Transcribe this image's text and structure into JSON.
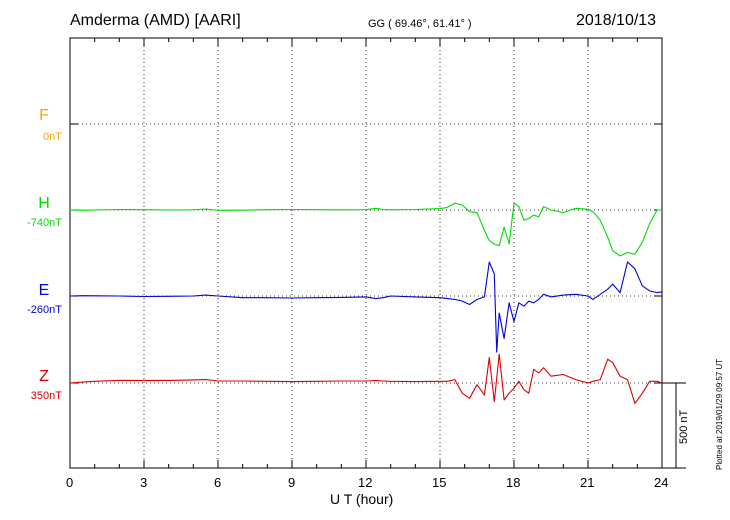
{
  "header": {
    "station": "Amderma (AMD)  [AARI]",
    "coords": "GG ( 69.46°,  61.41° )",
    "date": "2018/10/13"
  },
  "side_note": "Plotted at 2019/01/29 09:57 UT",
  "scale_label": "500 nT",
  "chart_data": {
    "type": "line",
    "xlabel": "U T (hour)",
    "xlim": [
      0,
      24
    ],
    "xticks": [
      "0",
      "3",
      "6",
      "9",
      "12",
      "15",
      "18",
      "21",
      "24"
    ],
    "grid": true,
    "scale_bar_nT": 500,
    "channels": [
      {
        "name": "F",
        "baseline": "0nT",
        "color": "#FFA500"
      },
      {
        "name": "H",
        "baseline": "-740nT",
        "color": "#00DD00"
      },
      {
        "name": "E",
        "baseline": "-260nT",
        "color": "#0000DD"
      },
      {
        "name": "Z",
        "baseline": "350nT",
        "color": "#DD0000"
      }
    ],
    "series": [
      {
        "name": "H",
        "x": [
          0,
          0.5,
          1,
          2,
          3,
          4,
          5,
          5.5,
          6,
          7,
          8,
          9,
          10,
          11,
          12,
          12.4,
          12.7,
          13,
          14,
          15,
          15.3,
          15.6,
          15.9,
          16.2,
          16.5,
          16.8,
          17,
          17.2,
          17.4,
          17.6,
          17.8,
          18,
          18.2,
          18.4,
          18.6,
          18.8,
          19,
          19.2,
          19.5,
          20,
          20.5,
          21,
          21.2,
          21.5,
          21.8,
          22,
          22.3,
          22.6,
          22.9,
          23.2,
          23.5,
          23.8,
          24
        ],
        "values": [
          0,
          -2,
          0,
          3,
          2,
          0,
          1,
          6,
          -2,
          -1,
          2,
          3,
          2,
          1,
          2,
          10,
          3,
          1,
          3,
          8,
          15,
          40,
          30,
          -10,
          -15,
          -120,
          -180,
          -200,
          -210,
          -100,
          -200,
          40,
          20,
          -60,
          -50,
          -30,
          -40,
          20,
          0,
          -15,
          10,
          5,
          -10,
          -60,
          -160,
          -240,
          -270,
          -250,
          -260,
          -190,
          -80,
          0,
          0
        ]
      },
      {
        "name": "E",
        "x": [
          0,
          0.5,
          1,
          2,
          3,
          4,
          5,
          5.5,
          6,
          7,
          8,
          9,
          10,
          11,
          12,
          12.4,
          12.7,
          13,
          14,
          15,
          15.3,
          15.6,
          15.9,
          16.2,
          16.5,
          16.8,
          17,
          17.2,
          17.3,
          17.4,
          17.6,
          17.8,
          18,
          18.2,
          18.4,
          18.6,
          18.8,
          19,
          19.2,
          19.5,
          20,
          20.5,
          21,
          21.2,
          21.5,
          21.8,
          22,
          22.3,
          22.6,
          22.9,
          23.2,
          23.5,
          23.8,
          24
        ],
        "values": [
          0,
          2,
          1,
          0,
          -3,
          -2,
          0,
          5,
          0,
          -10,
          -10,
          -12,
          -10,
          -8,
          -5,
          -15,
          -10,
          0,
          -5,
          -10,
          -15,
          -20,
          -30,
          -50,
          -20,
          -5,
          200,
          130,
          -330,
          -100,
          -250,
          -40,
          -150,
          -40,
          -60,
          -30,
          -40,
          -20,
          10,
          -5,
          5,
          10,
          0,
          -20,
          10,
          40,
          70,
          20,
          200,
          160,
          60,
          30,
          20,
          25
        ]
      },
      {
        "name": "Z",
        "x": [
          0,
          0.5,
          1,
          2,
          3,
          4,
          5,
          5.5,
          6,
          7,
          8,
          9,
          10,
          11,
          12,
          12.4,
          12.7,
          13,
          14,
          15,
          15.3,
          15.6,
          15.9,
          16.2,
          16.5,
          16.8,
          17,
          17.2,
          17.4,
          17.6,
          17.8,
          18,
          18.2,
          18.4,
          18.6,
          18.8,
          19,
          19.2,
          19.5,
          20,
          20.5,
          21,
          21.2,
          21.5,
          21.8,
          22,
          22.3,
          22.6,
          22.9,
          23.2,
          23.5,
          23.8,
          24
        ],
        "values": [
          0,
          5,
          10,
          15,
          15,
          15,
          18,
          20,
          12,
          12,
          10,
          8,
          10,
          12,
          12,
          14,
          12,
          10,
          8,
          10,
          10,
          20,
          -60,
          -90,
          -10,
          -70,
          150,
          -110,
          170,
          -100,
          -60,
          -30,
          10,
          -40,
          -60,
          80,
          60,
          90,
          40,
          50,
          20,
          0,
          10,
          20,
          140,
          120,
          40,
          20,
          -120,
          -60,
          10,
          10,
          0
        ]
      }
    ]
  }
}
